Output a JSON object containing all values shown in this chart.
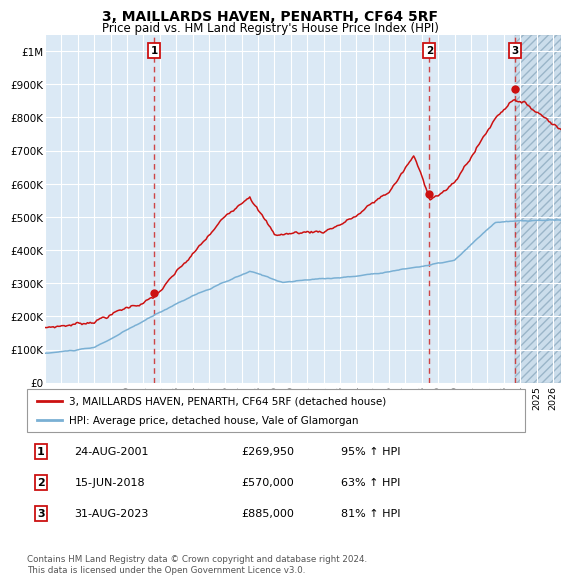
{
  "title": "3, MAILLARDS HAVEN, PENARTH, CF64 5RF",
  "subtitle": "Price paid vs. HM Land Registry's House Price Index (HPI)",
  "legend_line1": "3, MAILLARDS HAVEN, PENARTH, CF64 5RF (detached house)",
  "legend_line2": "HPI: Average price, detached house, Vale of Glamorgan",
  "footer1": "Contains HM Land Registry data © Crown copyright and database right 2024.",
  "footer2": "This data is licensed under the Open Government Licence v3.0.",
  "sales": [
    {
      "num": 1,
      "date": "24-AUG-2001",
      "price": 269950,
      "pct": "95%",
      "dir": "↑"
    },
    {
      "num": 2,
      "date": "15-JUN-2018",
      "price": 570000,
      "pct": "63%",
      "dir": "↑"
    },
    {
      "num": 3,
      "date": "31-AUG-2023",
      "price": 885000,
      "pct": "81%",
      "dir": "↑"
    }
  ],
  "sale_dates_decimal": [
    2001.646,
    2018.457,
    2023.664
  ],
  "sale_prices": [
    269950,
    570000,
    885000
  ],
  "hpi_color": "#7ab0d4",
  "price_color": "#cc1111",
  "sale_marker_color": "#cc1111",
  "vline_color": "#cc3333",
  "bg_color": "#dbe9f5",
  "grid_color": "#ffffff",
  "ylim": [
    0,
    1050000
  ],
  "xlim_start": 1995.0,
  "xlim_end": 2026.5,
  "yticks": [
    0,
    100000,
    200000,
    300000,
    400000,
    500000,
    600000,
    700000,
    800000,
    900000,
    1000000
  ],
  "ytick_labels": [
    "£0",
    "£100K",
    "£200K",
    "£300K",
    "£400K",
    "£500K",
    "£600K",
    "£700K",
    "£800K",
    "£900K",
    "£1M"
  ],
  "xtick_years": [
    1995,
    1996,
    1997,
    1998,
    1999,
    2000,
    2001,
    2002,
    2003,
    2004,
    2005,
    2006,
    2007,
    2008,
    2009,
    2010,
    2011,
    2012,
    2013,
    2014,
    2015,
    2016,
    2017,
    2018,
    2019,
    2020,
    2021,
    2022,
    2023,
    2024,
    2025,
    2026
  ]
}
